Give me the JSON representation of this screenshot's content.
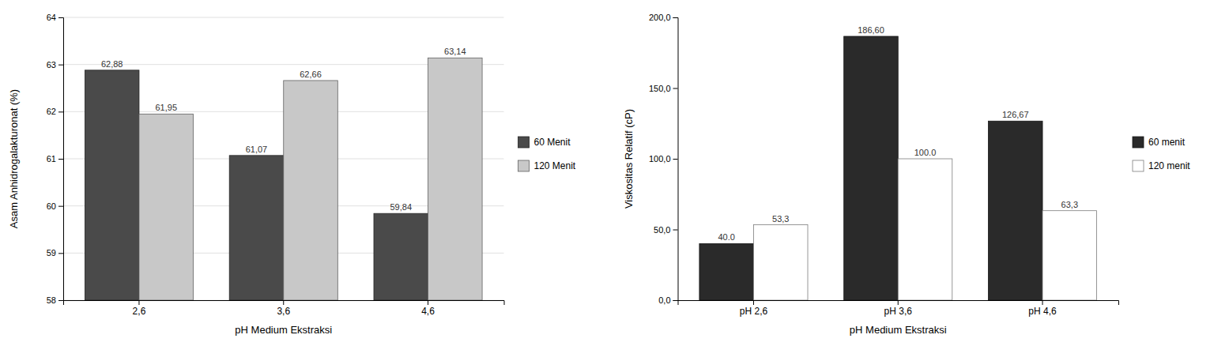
{
  "chart_data": [
    {
      "type": "bar",
      "categories": [
        "2,6",
        "3,6",
        "4,6"
      ],
      "series": [
        {
          "name": "60 Menit",
          "color": "#4a4a4a",
          "values": [
            62.88,
            61.07,
            59.84
          ],
          "value_labels": [
            "62,88",
            "61,07",
            "59,84"
          ]
        },
        {
          "name": "120 Menit",
          "color": "#c8c8c8",
          "values": [
            61.95,
            62.66,
            63.14
          ],
          "value_labels": [
            "61,95",
            "62,66",
            "63,14"
          ]
        }
      ],
      "xlabel": "pH Medium Ekstraksi",
      "ylabel": "Asam Anhidrogalakturonat (%)",
      "ylim": [
        58,
        64
      ],
      "yticks": [
        58,
        59,
        60,
        61,
        62,
        63,
        64
      ],
      "grid": true,
      "legend": "right",
      "data_labels": true
    },
    {
      "type": "bar",
      "categories": [
        "pH 2,6",
        "pH 3,6",
        "pH 4,6"
      ],
      "series": [
        {
          "name": "60 menit",
          "color": "#2a2a2a",
          "values": [
            40.0,
            186.6,
            126.67
          ],
          "value_labels": [
            "40.0",
            "186,60",
            "126,67"
          ]
        },
        {
          "name": "120 menit",
          "color": "#ffffff",
          "values": [
            53.3,
            100.0,
            63.3
          ],
          "value_labels": [
            "53,3",
            "100.0",
            "63,3"
          ]
        }
      ],
      "xlabel": "pH Medium Ekstraksi",
      "ylabel": "Viskositas Relatif (cP)",
      "ylim": [
        0,
        200
      ],
      "yticks": [
        {
          "value": 0.0,
          "label": "0,0"
        },
        {
          "value": 50.0,
          "label": "50,0"
        },
        {
          "value": 100.0,
          "label": "100,0"
        },
        {
          "value": 150.0,
          "label": "150,0"
        },
        {
          "value": 200.0,
          "label": "200,0"
        }
      ],
      "grid": false,
      "legend": "right",
      "data_labels": true
    }
  ]
}
